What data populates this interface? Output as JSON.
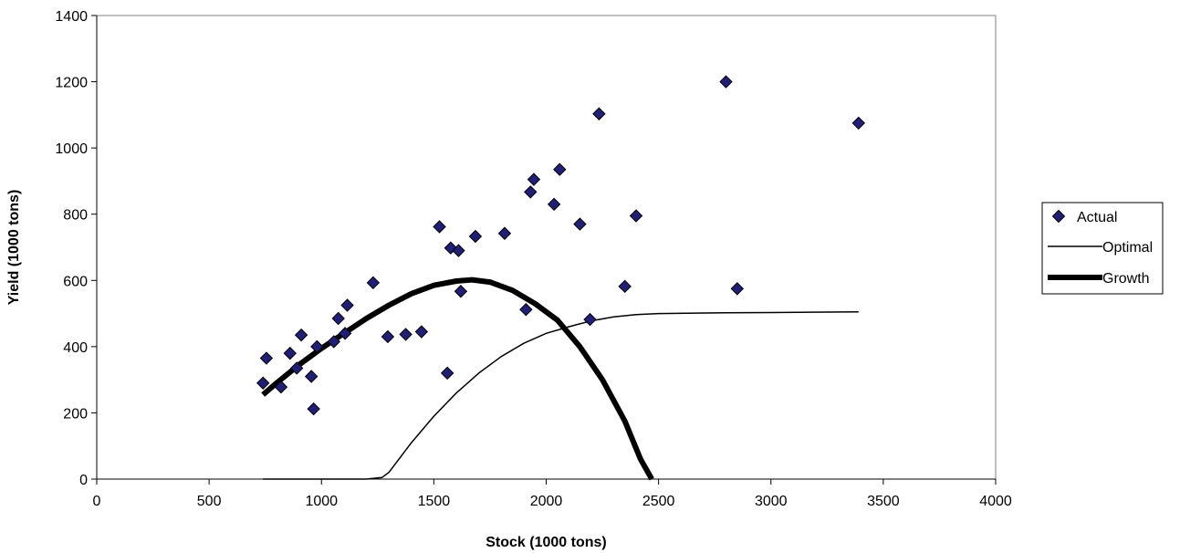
{
  "chart_data": {
    "type": "scatter",
    "xlabel": "Stock (1000 tons)",
    "ylabel": "Yield (1000 tons)",
    "xlim": [
      0,
      4000
    ],
    "ylim": [
      0,
      1400
    ],
    "xticks": [
      "0",
      "500",
      "1000",
      "1500",
      "2000",
      "2500",
      "3000",
      "3500",
      "4000"
    ],
    "yticks": [
      "0",
      "200",
      "400",
      "600",
      "800",
      "1000",
      "1200",
      "1400"
    ],
    "grid": false,
    "legend_position": "right",
    "colors": {
      "actual_fill": "#1f1f7a",
      "actual_stroke": "#000000",
      "line": "#000000"
    },
    "series": [
      {
        "name": "Actual",
        "kind": "scatter",
        "marker": "diamond",
        "points": [
          [
            740,
            290
          ],
          [
            755,
            365
          ],
          [
            820,
            278
          ],
          [
            860,
            380
          ],
          [
            890,
            335
          ],
          [
            910,
            435
          ],
          [
            955,
            310
          ],
          [
            965,
            212
          ],
          [
            980,
            400
          ],
          [
            1055,
            415
          ],
          [
            1075,
            485
          ],
          [
            1105,
            440
          ],
          [
            1115,
            525
          ],
          [
            1230,
            593
          ],
          [
            1295,
            430
          ],
          [
            1375,
            437
          ],
          [
            1445,
            445
          ],
          [
            1525,
            762
          ],
          [
            1560,
            320
          ],
          [
            1575,
            698
          ],
          [
            1610,
            690
          ],
          [
            1620,
            567
          ],
          [
            1685,
            733
          ],
          [
            1815,
            742
          ],
          [
            1910,
            512
          ],
          [
            1930,
            867
          ],
          [
            1945,
            905
          ],
          [
            2035,
            830
          ],
          [
            2060,
            935
          ],
          [
            2150,
            770
          ],
          [
            2195,
            482
          ],
          [
            2235,
            1103
          ],
          [
            2350,
            582
          ],
          [
            2400,
            795
          ],
          [
            2800,
            1200
          ],
          [
            2850,
            575
          ],
          [
            3390,
            1075
          ]
        ]
      },
      {
        "name": "Optimal",
        "kind": "line",
        "width": 1.5,
        "points": [
          [
            740,
            0
          ],
          [
            1000,
            0
          ],
          [
            1200,
            0
          ],
          [
            1270,
            5
          ],
          [
            1300,
            20
          ],
          [
            1400,
            110
          ],
          [
            1500,
            190
          ],
          [
            1600,
            260
          ],
          [
            1700,
            320
          ],
          [
            1800,
            370
          ],
          [
            1900,
            410
          ],
          [
            2000,
            440
          ],
          [
            2100,
            460
          ],
          [
            2200,
            478
          ],
          [
            2300,
            490
          ],
          [
            2400,
            497
          ],
          [
            2500,
            500
          ],
          [
            2800,
            502
          ],
          [
            3000,
            503
          ],
          [
            3390,
            505
          ]
        ]
      },
      {
        "name": "Growth",
        "kind": "line",
        "width": 6,
        "points": [
          [
            740,
            255
          ],
          [
            800,
            290
          ],
          [
            900,
            345
          ],
          [
            1000,
            395
          ],
          [
            1100,
            440
          ],
          [
            1200,
            485
          ],
          [
            1300,
            525
          ],
          [
            1400,
            560
          ],
          [
            1500,
            585
          ],
          [
            1600,
            598
          ],
          [
            1670,
            602
          ],
          [
            1750,
            595
          ],
          [
            1850,
            570
          ],
          [
            1950,
            530
          ],
          [
            2050,
            480
          ],
          [
            2150,
            400
          ],
          [
            2250,
            300
          ],
          [
            2350,
            175
          ],
          [
            2420,
            60
          ],
          [
            2470,
            0
          ]
        ]
      }
    ]
  }
}
